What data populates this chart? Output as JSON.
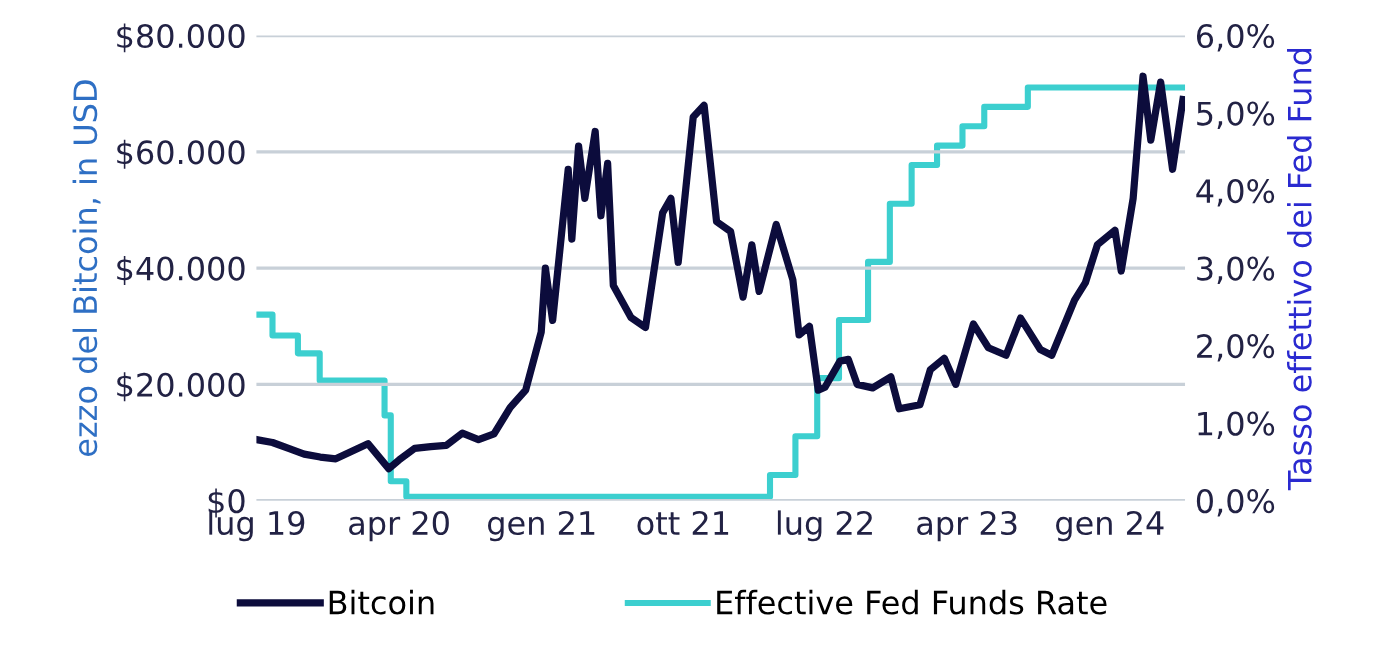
{
  "chart_data": {
    "type": "line",
    "ylabel": "ezzo del Bitcoin, in USD",
    "y2label": "Tasso effettivo dei Fed Fund",
    "xlim": [
      "2019-07-01",
      "2024-05-25"
    ],
    "xticks": [
      {
        "value": "2019-07-01",
        "label": "lug 19"
      },
      {
        "value": "2020-04-01",
        "label": "apr 20"
      },
      {
        "value": "2021-01-01",
        "label": "gen 21"
      },
      {
        "value": "2021-10-01",
        "label": "ott 21"
      },
      {
        "value": "2022-07-01",
        "label": "lug 22"
      },
      {
        "value": "2023-04-01",
        "label": "apr 23"
      },
      {
        "value": "2024-01-01",
        "label": "gen 24"
      }
    ],
    "ylim": [
      0,
      80000
    ],
    "yticks": [
      {
        "value": 0,
        "label": "$0"
      },
      {
        "value": 20000,
        "label": "$20.000"
      },
      {
        "value": 40000,
        "label": "$40.000"
      },
      {
        "value": 60000,
        "label": "$60.000"
      },
      {
        "value": 80000,
        "label": "$80.000"
      }
    ],
    "y2lim": [
      0,
      6
    ],
    "y2ticks": [
      {
        "value": 0,
        "label": "0,0%"
      },
      {
        "value": 1,
        "label": "1,0%"
      },
      {
        "value": 2,
        "label": "2,0%"
      },
      {
        "value": 3,
        "label": "3,0%"
      },
      {
        "value": 4,
        "label": "4,0%"
      },
      {
        "value": 5,
        "label": "5,0%"
      },
      {
        "value": 6,
        "label": "6,0%"
      }
    ],
    "grid": "y",
    "legend": "bottom",
    "series": [
      {
        "name": "Bitcoin",
        "color": "#0c0c3c",
        "x": [
          "2019-07-01",
          "2019-08-01",
          "2019-09-01",
          "2019-10-01",
          "2019-11-01",
          "2019-12-01",
          "2020-01-01",
          "2020-02-01",
          "2020-03-12",
          "2020-04-01",
          "2020-05-01",
          "2020-06-01",
          "2020-07-01",
          "2020-08-01",
          "2020-09-01",
          "2020-10-01",
          "2020-11-01",
          "2020-12-01",
          "2020-12-31",
          "2021-01-08",
          "2021-01-22",
          "2021-02-21",
          "2021-02-28",
          "2021-03-13",
          "2021-03-25",
          "2021-04-14",
          "2021-04-25",
          "2021-05-08",
          "2021-05-19",
          "2021-06-22",
          "2021-07-20",
          "2021-08-22",
          "2021-09-07",
          "2021-09-21",
          "2021-10-20",
          "2021-11-10",
          "2021-12-04",
          "2021-12-31",
          "2022-01-24",
          "2022-02-10",
          "2022-02-24",
          "2022-03-29",
          "2022-04-30",
          "2022-05-12",
          "2022-06-01",
          "2022-06-18",
          "2022-07-01",
          "2022-07-30",
          "2022-08-15",
          "2022-09-01",
          "2022-10-01",
          "2022-11-05",
          "2022-11-21",
          "2022-12-31",
          "2023-01-20",
          "2023-02-16",
          "2023-03-10",
          "2023-04-13",
          "2023-05-12",
          "2023-06-15",
          "2023-07-13",
          "2023-08-20",
          "2023-09-11",
          "2023-10-25",
          "2023-11-15",
          "2023-12-08",
          "2024-01-11",
          "2024-01-23",
          "2024-02-15",
          "2024-03-05",
          "2024-03-20",
          "2024-04-08",
          "2024-05-01",
          "2024-05-21"
        ],
        "values": [
          10500,
          10000,
          9000,
          8000,
          7500,
          7200,
          8500,
          9800,
          5500,
          7000,
          9000,
          9300,
          9500,
          11600,
          10500,
          11500,
          16000,
          19000,
          29000,
          40000,
          31000,
          57000,
          45000,
          61000,
          52000,
          63500,
          49000,
          58000,
          37000,
          31500,
          29800,
          49500,
          52000,
          41000,
          66000,
          68000,
          48000,
          46300,
          35000,
          44000,
          36000,
          47500,
          38000,
          28500,
          30000,
          19000,
          19500,
          24000,
          24300,
          20000,
          19400,
          21300,
          15800,
          16500,
          22500,
          24500,
          20000,
          30400,
          26300,
          25000,
          31400,
          26000,
          25000,
          34500,
          37500,
          44000,
          46500,
          39500,
          52000,
          73000,
          62000,
          72000,
          57000,
          69000
        ]
      },
      {
        "name": "Effective Fed Funds Rate",
        "color": "#3ccfcf",
        "type": "step",
        "axis": "y2",
        "x": [
          "2019-07-01",
          "2019-08-01",
          "2019-09-19",
          "2019-10-31",
          "2020-03-04",
          "2020-03-16",
          "2020-04-15",
          "2022-03-17",
          "2022-05-05",
          "2022-06-16",
          "2022-07-28",
          "2022-09-22",
          "2022-11-03",
          "2022-12-15",
          "2023-02-02",
          "2023-03-23",
          "2023-05-04",
          "2023-07-27",
          "2024-05-25"
        ],
        "values": [
          2.4,
          2.13,
          1.9,
          1.55,
          1.1,
          0.25,
          0.05,
          0.33,
          0.83,
          1.58,
          2.33,
          3.08,
          3.83,
          4.33,
          4.58,
          4.83,
          5.08,
          5.33,
          5.33
        ]
      }
    ]
  }
}
